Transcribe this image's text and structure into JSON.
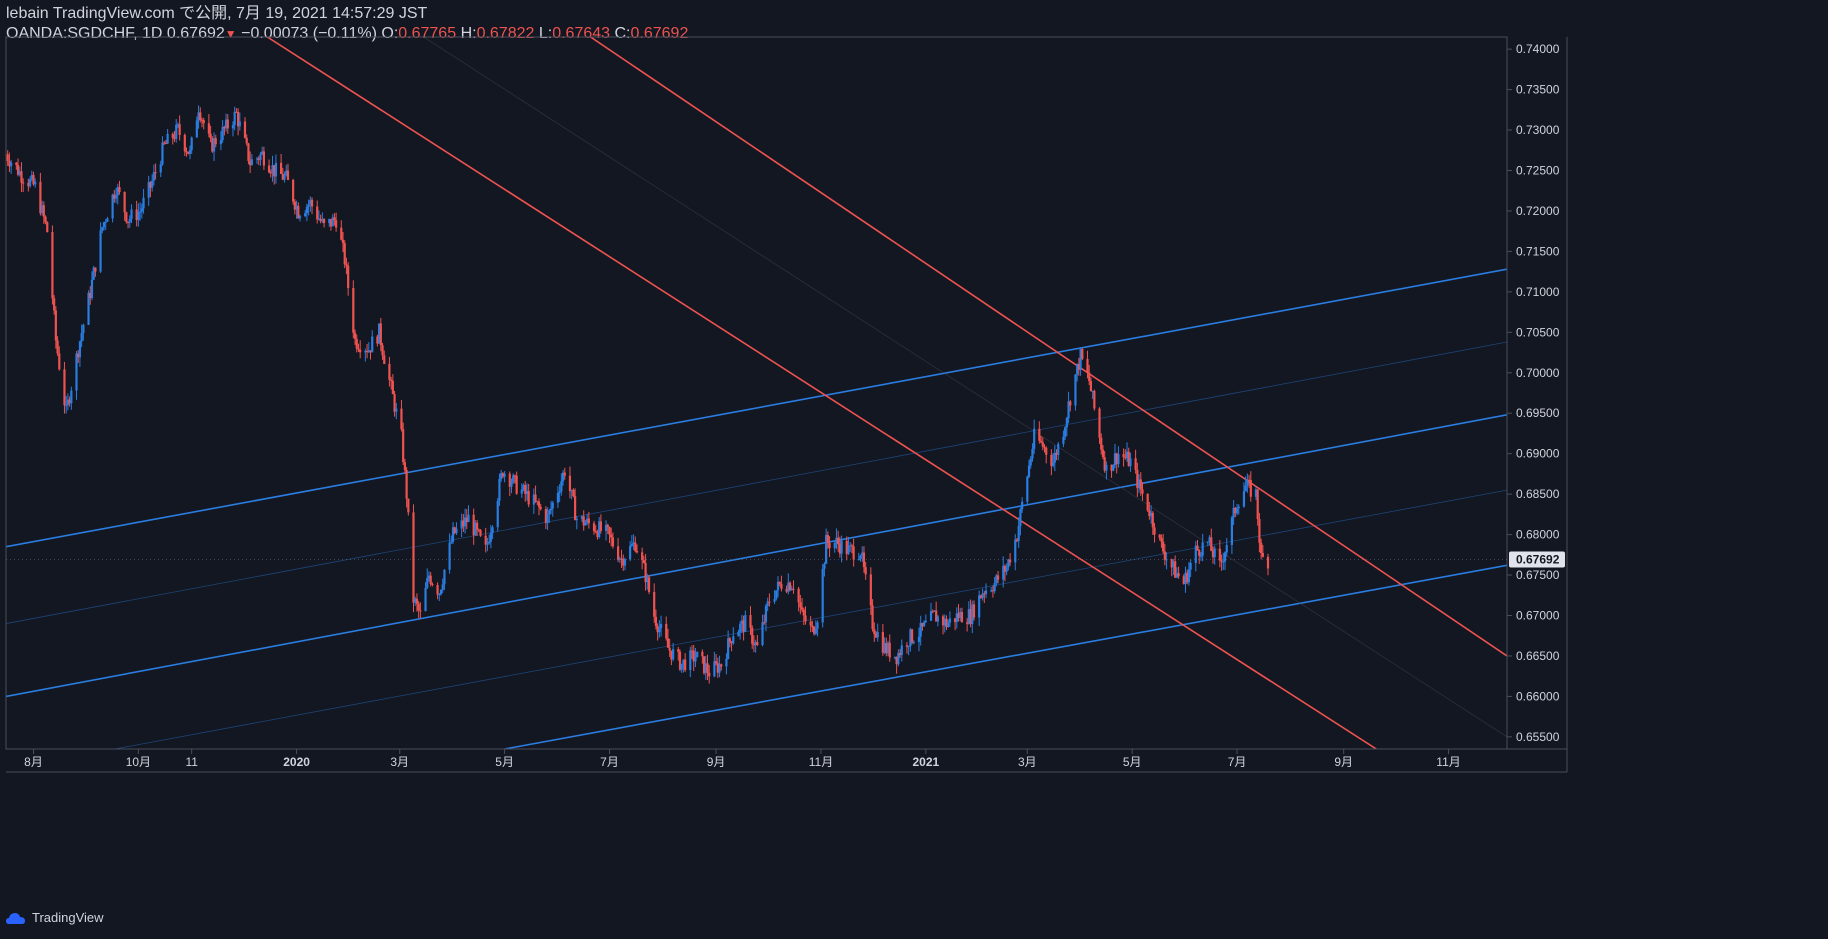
{
  "header": {
    "line1": "lebain TradingView.com で公開, 7月 19, 2021 14:57:29 JST",
    "symbol": "OANDA:SGDCHF, 1D",
    "price": "0.67692",
    "arrow": "▼",
    "change": "−0.00073 (−0.11%)",
    "o_label": "O:",
    "o_value": "0.67765",
    "h_label": "H:",
    "h_value": "0.67822",
    "l_label": "L:",
    "l_value": "0.67643",
    "c_label": "C:",
    "c_value": "0.67692"
  },
  "brand": {
    "label": "TradingView",
    "icon": "tradingview-cloud-icon"
  },
  "colors": {
    "background": "#131722",
    "up": "#2a7de1",
    "down": "#ef5350",
    "axis_text": "#d1d4dc",
    "border": "#4a4e59",
    "last_price_bg": "#e0e3eb"
  },
  "chart_data": {
    "type": "candlestick",
    "symbol": "OANDA:SGDCHF",
    "interval": "1D",
    "last_price": "0.67692",
    "ylim": [
      0.6535,
      0.7415
    ],
    "y_ticks": [
      "0.74000",
      "0.73500",
      "0.73000",
      "0.72500",
      "0.72000",
      "0.71500",
      "0.71000",
      "0.70500",
      "0.70000",
      "0.69500",
      "0.69000",
      "0.68500",
      "0.68000",
      "0.67500",
      "0.67000",
      "0.66500",
      "0.66000",
      "0.65500"
    ],
    "x_ticks": [
      "8月",
      "10月",
      "11",
      "2020",
      "3月",
      "5月",
      "7月",
      "9月",
      "11月",
      "2021",
      "3月",
      "5月",
      "7月",
      "9月",
      "11月"
    ],
    "x_tick_dates": [
      "2019-08-01",
      "2019-10-01",
      "2019-11-01",
      "2020-01-01",
      "2020-03-01",
      "2020-05-01",
      "2020-07-01",
      "2020-09-01",
      "2020-11-01",
      "2021-01-01",
      "2021-03-01",
      "2021-05-01",
      "2021-07-01",
      "2021-09-01",
      "2021-11-01"
    ],
    "xlim": [
      "2019-07-16",
      "2021-12-05"
    ],
    "price_path": [
      [
        "2019-07-16",
        0.727
      ],
      [
        "2019-07-25",
        0.7245
      ],
      [
        "2019-08-02",
        0.723
      ],
      [
        "2019-08-09",
        0.7175
      ],
      [
        "2019-08-14",
        0.704
      ],
      [
        "2019-08-20",
        0.695
      ],
      [
        "2019-08-27",
        0.703
      ],
      [
        "2019-09-03",
        0.71
      ],
      [
        "2019-09-10",
        0.718
      ],
      [
        "2019-09-18",
        0.723
      ],
      [
        "2019-09-25",
        0.719
      ],
      [
        "2019-10-02",
        0.72
      ],
      [
        "2019-10-08",
        0.723
      ],
      [
        "2019-10-16",
        0.728
      ],
      [
        "2019-10-24",
        0.73
      ],
      [
        "2019-10-31",
        0.727
      ],
      [
        "2019-11-05",
        0.733
      ],
      [
        "2019-11-12",
        0.728
      ],
      [
        "2019-11-20",
        0.73
      ],
      [
        "2019-11-27",
        0.732
      ],
      [
        "2019-12-05",
        0.726
      ],
      [
        "2019-12-12",
        0.727
      ],
      [
        "2019-12-19",
        0.725
      ],
      [
        "2019-12-26",
        0.724
      ],
      [
        "2020-01-02",
        0.72
      ],
      [
        "2020-01-09",
        0.721
      ],
      [
        "2020-01-17",
        0.718
      ],
      [
        "2020-01-24",
        0.719
      ],
      [
        "2020-01-29",
        0.714
      ],
      [
        "2020-02-04",
        0.704
      ],
      [
        "2020-02-12",
        0.703
      ],
      [
        "2020-02-18",
        0.705
      ],
      [
        "2020-02-25",
        0.698
      ],
      [
        "2020-03-02",
        0.692
      ],
      [
        "2020-03-05",
        0.685
      ],
      [
        "2020-03-09",
        0.672
      ],
      [
        "2020-03-13",
        0.67
      ],
      [
        "2020-03-18",
        0.675
      ],
      [
        "2020-03-24",
        0.673
      ],
      [
        "2020-04-01",
        0.68
      ],
      [
        "2020-04-10",
        0.682
      ],
      [
        "2020-04-20",
        0.678
      ],
      [
        "2020-04-30",
        0.688
      ],
      [
        "2020-05-08",
        0.686
      ],
      [
        "2020-05-18",
        0.684
      ],
      [
        "2020-05-26",
        0.682
      ],
      [
        "2020-06-05",
        0.688
      ],
      [
        "2020-06-12",
        0.682
      ],
      [
        "2020-06-22",
        0.681
      ],
      [
        "2020-06-30",
        0.68
      ],
      [
        "2020-07-08",
        0.677
      ],
      [
        "2020-07-16",
        0.679
      ],
      [
        "2020-07-22",
        0.675
      ],
      [
        "2020-07-27",
        0.67
      ],
      [
        "2020-08-04",
        0.666
      ],
      [
        "2020-08-12",
        0.664
      ],
      [
        "2020-08-20",
        0.665
      ],
      [
        "2020-08-28",
        0.663
      ],
      [
        "2020-09-04",
        0.664
      ],
      [
        "2020-09-11",
        0.668
      ],
      [
        "2020-09-18",
        0.669
      ],
      [
        "2020-09-25",
        0.666
      ],
      [
        "2020-10-02",
        0.672
      ],
      [
        "2020-10-09",
        0.674
      ],
      [
        "2020-10-16",
        0.674
      ],
      [
        "2020-10-21",
        0.67
      ],
      [
        "2020-10-27",
        0.668
      ],
      [
        "2020-10-30",
        0.67
      ],
      [
        "2020-11-04",
        0.679
      ],
      [
        "2020-11-10",
        0.679
      ],
      [
        "2020-11-17",
        0.678
      ],
      [
        "2020-11-24",
        0.678
      ],
      [
        "2020-12-01",
        0.669
      ],
      [
        "2020-12-08",
        0.666
      ],
      [
        "2020-12-15",
        0.665
      ],
      [
        "2020-12-21",
        0.667
      ],
      [
        "2020-12-29",
        0.668
      ],
      [
        "2021-01-06",
        0.67
      ],
      [
        "2021-01-13",
        0.669
      ],
      [
        "2021-01-20",
        0.67
      ],
      [
        "2021-01-27",
        0.67
      ],
      [
        "2021-02-03",
        0.673
      ],
      [
        "2021-02-10",
        0.674
      ],
      [
        "2021-02-17",
        0.676
      ],
      [
        "2021-02-23",
        0.68
      ],
      [
        "2021-02-27",
        0.685
      ],
      [
        "2021-03-05",
        0.692
      ],
      [
        "2021-03-10",
        0.691
      ],
      [
        "2021-03-16",
        0.689
      ],
      [
        "2021-03-22",
        0.693
      ],
      [
        "2021-03-27",
        0.698
      ],
      [
        "2021-04-01",
        0.702
      ],
      [
        "2021-04-06",
        0.699
      ],
      [
        "2021-04-12",
        0.692
      ],
      [
        "2021-04-16",
        0.688
      ],
      [
        "2021-04-23",
        0.69
      ],
      [
        "2021-04-30",
        0.689
      ],
      [
        "2021-05-05",
        0.686
      ],
      [
        "2021-05-11",
        0.683
      ],
      [
        "2021-05-17",
        0.679
      ],
      [
        "2021-05-24",
        0.676
      ],
      [
        "2021-05-31",
        0.674
      ],
      [
        "2021-06-07",
        0.678
      ],
      [
        "2021-06-14",
        0.679
      ],
      [
        "2021-06-21",
        0.676
      ],
      [
        "2021-06-25",
        0.679
      ],
      [
        "2021-07-01",
        0.684
      ],
      [
        "2021-07-06",
        0.686
      ],
      [
        "2021-07-12",
        0.685
      ],
      [
        "2021-07-15",
        0.677
      ],
      [
        "2021-07-19",
        0.67692
      ]
    ],
    "trend_lines": [
      {
        "color": "blue",
        "width": "thick",
        "p1": [
          "2019-07-16",
          0.6785
        ],
        "p2": [
          "2021-12-05",
          0.7128
        ]
      },
      {
        "color": "blue",
        "width": "thin",
        "p1": [
          "2019-07-16",
          0.669
        ],
        "p2": [
          "2021-12-05",
          0.7038
        ]
      },
      {
        "color": "blue",
        "width": "thick",
        "p1": [
          "2019-07-16",
          0.66
        ],
        "p2": [
          "2021-12-05",
          0.6948
        ]
      },
      {
        "color": "blue",
        "width": "thin",
        "p1": [
          "2019-07-16",
          0.651
        ],
        "p2": [
          "2021-12-05",
          0.6855
        ]
      },
      {
        "color": "blue",
        "width": "thick",
        "p1": [
          "2020-05-01",
          0.6535
        ],
        "p2": [
          "2021-12-05",
          0.6762
        ]
      },
      {
        "color": "red",
        "width": "thick",
        "p1": [
          "2019-12-15",
          0.7415
        ],
        "p2": [
          "2021-09-20",
          0.6535
        ]
      },
      {
        "color": "red",
        "width": "thick",
        "p1": [
          "2020-06-20",
          0.7415
        ],
        "p2": [
          "2021-12-05",
          0.665
        ]
      },
      {
        "color": "gray",
        "width": "thin",
        "p1": [
          "2020-03-15",
          0.7415
        ],
        "p2": [
          "2021-12-05",
          0.655
        ]
      }
    ]
  }
}
